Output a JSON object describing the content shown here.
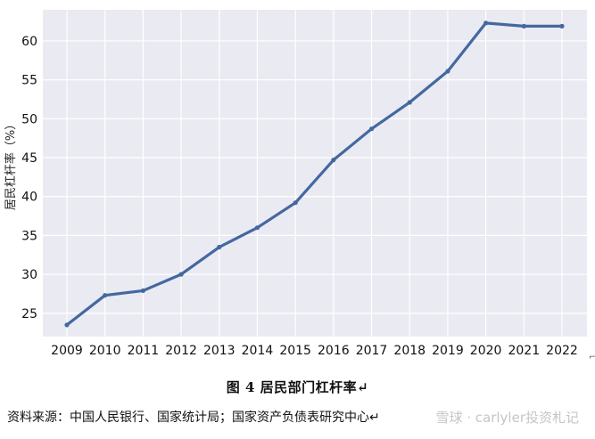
{
  "chart_data": {
    "type": "line",
    "title": "",
    "xlabel": "",
    "ylabel": "居民杠杆率（%）",
    "categories": [
      "2009",
      "2010",
      "2011",
      "2012",
      "2013",
      "2014",
      "2015",
      "2016",
      "2017",
      "2018",
      "2019",
      "2020",
      "2021",
      "2022"
    ],
    "series": [
      {
        "values": [
          23.5,
          27.3,
          27.9,
          30.0,
          33.5,
          36.0,
          39.2,
          44.7,
          48.7,
          52.1,
          56.1,
          62.3,
          61.9,
          61.9
        ]
      }
    ],
    "yticks": [
      25,
      30,
      35,
      40,
      45,
      50,
      55,
      60
    ],
    "ylim": [
      22,
      64
    ],
    "grid": true,
    "legend": "none",
    "colors": {
      "line": "#4468a0",
      "plot_bg": "#eaeaf2",
      "grid": "#ffffff"
    }
  },
  "caption": "图 4  居民部门杠杆率↵",
  "source": "资料来源：中国人民银行、国家统计局；国家资产负债表研究中心↵",
  "watermark": "雪球 · carlyler投资札记",
  "edge_mark": "⌐"
}
